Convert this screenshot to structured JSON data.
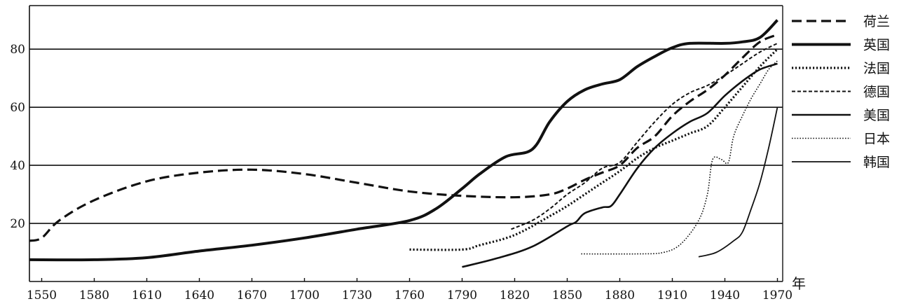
{
  "chart_data": {
    "type": "line",
    "title": "",
    "xlabel": "年",
    "ylabel": "",
    "xlim": [
      1543,
      1973
    ],
    "ylim": [
      0,
      95
    ],
    "x_ticks": [
      1550,
      1580,
      1610,
      1640,
      1670,
      1700,
      1730,
      1760,
      1790,
      1820,
      1850,
      1880,
      1910,
      1940,
      1970
    ],
    "y_ticks": [
      20,
      40,
      60,
      80
    ],
    "grid": "horizontal",
    "legend_position": "right",
    "series": [
      {
        "name": "荷兰",
        "color": "#111111",
        "style": "dashed-thick",
        "points": [
          [
            1543,
            14
          ],
          [
            1550,
            15
          ],
          [
            1560,
            21
          ],
          [
            1580,
            28
          ],
          [
            1610,
            34.5
          ],
          [
            1640,
            37.5
          ],
          [
            1670,
            38.5
          ],
          [
            1700,
            37
          ],
          [
            1730,
            34
          ],
          [
            1760,
            31
          ],
          [
            1790,
            29.5
          ],
          [
            1820,
            29
          ],
          [
            1840,
            30
          ],
          [
            1850,
            32
          ],
          [
            1860,
            35
          ],
          [
            1870,
            37.5
          ],
          [
            1880,
            40
          ],
          [
            1890,
            46
          ],
          [
            1900,
            50
          ],
          [
            1910,
            57
          ],
          [
            1920,
            62
          ],
          [
            1930,
            66
          ],
          [
            1940,
            71
          ],
          [
            1950,
            77
          ],
          [
            1960,
            82.5
          ],
          [
            1970,
            85
          ]
        ]
      },
      {
        "name": "英国",
        "color": "#111111",
        "style": "solid-thick",
        "points": [
          [
            1543,
            7.5
          ],
          [
            1580,
            7.5
          ],
          [
            1610,
            8.2
          ],
          [
            1640,
            10.5
          ],
          [
            1670,
            12.5
          ],
          [
            1700,
            15
          ],
          [
            1730,
            18
          ],
          [
            1760,
            21
          ],
          [
            1775,
            25
          ],
          [
            1790,
            32
          ],
          [
            1800,
            37
          ],
          [
            1815,
            43
          ],
          [
            1830,
            45.5
          ],
          [
            1840,
            55
          ],
          [
            1850,
            62
          ],
          [
            1860,
            66
          ],
          [
            1870,
            68
          ],
          [
            1880,
            69.5
          ],
          [
            1890,
            74
          ],
          [
            1900,
            77.5
          ],
          [
            1910,
            80.5
          ],
          [
            1920,
            82
          ],
          [
            1940,
            82
          ],
          [
            1950,
            82.5
          ],
          [
            1960,
            84
          ],
          [
            1970,
            90
          ]
        ]
      },
      {
        "name": "法国",
        "color": "#111111",
        "style": "dotted-thick",
        "points": [
          [
            1760,
            11
          ],
          [
            1790,
            11
          ],
          [
            1800,
            12.5
          ],
          [
            1820,
            16
          ],
          [
            1840,
            22.5
          ],
          [
            1850,
            26
          ],
          [
            1860,
            30
          ],
          [
            1870,
            34
          ],
          [
            1880,
            38
          ],
          [
            1890,
            42.5
          ],
          [
            1900,
            46
          ],
          [
            1910,
            48.5
          ],
          [
            1920,
            51
          ],
          [
            1930,
            53.5
          ],
          [
            1940,
            60
          ],
          [
            1950,
            67
          ],
          [
            1960,
            74
          ],
          [
            1970,
            80
          ]
        ]
      },
      {
        "name": "德国",
        "color": "#111111",
        "style": "dashed-thin",
        "points": [
          [
            1818,
            18
          ],
          [
            1830,
            21
          ],
          [
            1840,
            25
          ],
          [
            1850,
            30
          ],
          [
            1860,
            34
          ],
          [
            1870,
            39
          ],
          [
            1880,
            41
          ],
          [
            1890,
            48
          ],
          [
            1900,
            55
          ],
          [
            1910,
            61
          ],
          [
            1920,
            65
          ],
          [
            1930,
            67.5
          ],
          [
            1940,
            71
          ],
          [
            1950,
            75
          ],
          [
            1960,
            79
          ],
          [
            1970,
            82
          ]
        ]
      },
      {
        "name": "美国",
        "color": "#111111",
        "style": "solid-medium",
        "points": [
          [
            1790,
            5
          ],
          [
            1810,
            8
          ],
          [
            1830,
            12
          ],
          [
            1850,
            19
          ],
          [
            1855,
            20.5
          ],
          [
            1860,
            23.5
          ],
          [
            1870,
            25.5
          ],
          [
            1875,
            26
          ],
          [
            1880,
            30
          ],
          [
            1890,
            39
          ],
          [
            1900,
            46
          ],
          [
            1910,
            51
          ],
          [
            1920,
            55
          ],
          [
            1930,
            58
          ],
          [
            1940,
            64
          ],
          [
            1950,
            69
          ],
          [
            1960,
            73
          ],
          [
            1970,
            75
          ]
        ]
      },
      {
        "name": "日本",
        "color": "#111111",
        "style": "dotted-thin",
        "points": [
          [
            1858,
            9.5
          ],
          [
            1890,
            9.5
          ],
          [
            1905,
            10
          ],
          [
            1915,
            13
          ],
          [
            1925,
            21
          ],
          [
            1930,
            30
          ],
          [
            1933,
            42
          ],
          [
            1938,
            42
          ],
          [
            1942,
            41
          ],
          [
            1945,
            50
          ],
          [
            1950,
            57
          ],
          [
            1955,
            63
          ],
          [
            1960,
            68
          ],
          [
            1965,
            73
          ],
          [
            1970,
            76
          ]
        ]
      },
      {
        "name": "韩国",
        "color": "#111111",
        "style": "solid-thin",
        "points": [
          [
            1925,
            8.5
          ],
          [
            1935,
            10
          ],
          [
            1945,
            14
          ],
          [
            1950,
            17
          ],
          [
            1955,
            25
          ],
          [
            1960,
            34
          ],
          [
            1965,
            46
          ],
          [
            1970,
            60
          ]
        ]
      }
    ]
  }
}
